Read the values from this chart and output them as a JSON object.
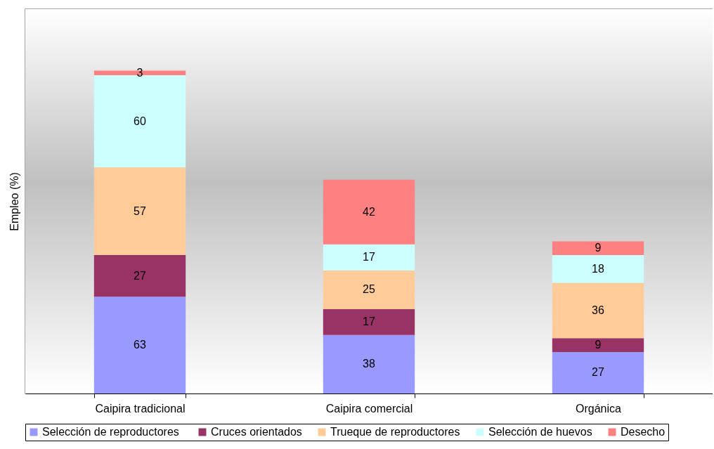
{
  "chart_data": {
    "type": "bar",
    "stacked": true,
    "ylabel": "Empleo (%)",
    "categories": [
      "Caipira tradicional",
      "Caipira comercial",
      "Orgánica"
    ],
    "series": [
      {
        "name": "Selección de  reproductores",
        "color": "#9999ff",
        "values": [
          63,
          38,
          27
        ]
      },
      {
        "name": "Cruces orientados",
        "color": "#993366",
        "values": [
          27,
          17,
          9
        ]
      },
      {
        "name": "Trueque de reproductores",
        "color": "#ffcc99",
        "values": [
          57,
          25,
          36
        ]
      },
      {
        "name": "Selección de huevos",
        "color": "#ccffff",
        "values": [
          60,
          17,
          18
        ]
      },
      {
        "name": "Desecho",
        "color": "#ff8080",
        "values": [
          3,
          42,
          9
        ]
      }
    ],
    "ylim": [
      0,
      250
    ],
    "tick_labels": "x",
    "data_labels": true,
    "legend": "bottom"
  }
}
